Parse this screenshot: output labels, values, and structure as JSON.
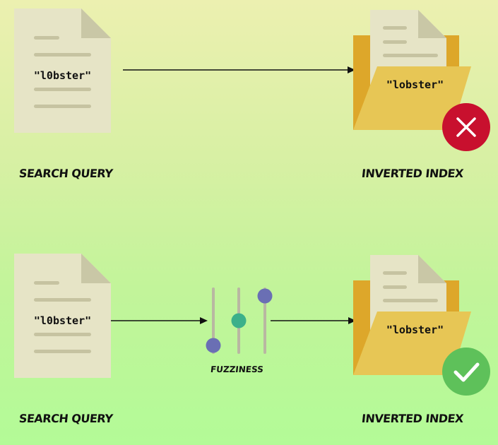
{
  "top_row": {
    "query_text": "\"l0bster\"",
    "index_text": "\"lobster\"",
    "query_label": "SEARCH QUERY",
    "index_label": "INVERTED INDEX",
    "result_icon": "cross-icon"
  },
  "bottom_row": {
    "query_text": "\"l0bster\"",
    "index_text": "\"lobster\"",
    "query_label": "SEARCH QUERY",
    "index_label": "INVERTED INDEX",
    "fuzziness_label": "FUZZINESS",
    "result_icon": "check-icon"
  },
  "colors": {
    "document": "#e6e4c6",
    "document_fold": "#c9c7a6",
    "document_lines": "#c6c3a1",
    "folder_back": "#dda72a",
    "folder_front": "#e7c655",
    "fail": "#c8102e",
    "success": "#5ec15a",
    "slider_blue": "#6a6fb4",
    "slider_green": "#3cb08a"
  }
}
